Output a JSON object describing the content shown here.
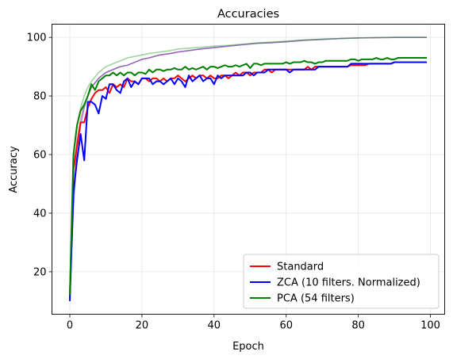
{
  "chart_data": {
    "type": "line",
    "title": "Accuracies",
    "xlabel": "Epoch",
    "ylabel": "Accuracy",
    "xlim": [
      -4.95,
      103.95
    ],
    "ylim": [
      5.5,
      104.5
    ],
    "xticks": [
      0,
      20,
      40,
      60,
      80,
      100
    ],
    "yticks": [
      20,
      40,
      60,
      80,
      100
    ],
    "grid": true,
    "legend_position": "bottom-right",
    "series": [
      {
        "name": "Standard",
        "color": "#ff0000",
        "in_legend": true,
        "x": [
          0,
          1,
          2,
          3,
          4,
          5,
          6,
          7,
          8,
          9,
          10,
          11,
          12,
          13,
          14,
          15,
          16,
          17,
          18,
          19,
          20,
          21,
          22,
          23,
          24,
          25,
          26,
          27,
          28,
          29,
          30,
          31,
          32,
          33,
          34,
          35,
          36,
          37,
          38,
          39,
          40,
          41,
          42,
          43,
          44,
          45,
          46,
          47,
          48,
          49,
          50,
          51,
          52,
          53,
          54,
          55,
          56,
          57,
          58,
          59,
          60,
          61,
          62,
          63,
          64,
          65,
          66,
          67,
          68,
          69,
          70,
          71,
          72,
          73,
          74,
          75,
          76,
          77,
          78,
          79,
          80,
          81,
          82,
          83,
          84,
          85,
          86,
          87,
          88,
          89,
          90,
          91,
          92,
          93,
          94,
          95,
          96,
          97,
          98,
          99
        ],
        "values": [
          11,
          55,
          63,
          71,
          71,
          76,
          79,
          81,
          82,
          82,
          83,
          81,
          84,
          83,
          84,
          83,
          86,
          85,
          85,
          84,
          86,
          86,
          85,
          86,
          86,
          85,
          86,
          85,
          86,
          86,
          87,
          86,
          85,
          86,
          87,
          86,
          87,
          87,
          86,
          87,
          86,
          86,
          87,
          87,
          86,
          87,
          88,
          87,
          88,
          88,
          87,
          88,
          88,
          88,
          89,
          89,
          88,
          89,
          89,
          89,
          89,
          89,
          89,
          89,
          89,
          89,
          90,
          89,
          90,
          90,
          90,
          90,
          90,
          90,
          90,
          90,
          90,
          90,
          90.5,
          90.5,
          90.5,
          90.5,
          90.5,
          91,
          91,
          91,
          91,
          91,
          91,
          91,
          91.5,
          91.5,
          91.5,
          91.5,
          91.5,
          91.5,
          91.5,
          91.5,
          91.5,
          91.5
        ]
      },
      {
        "name": "ZCA (10 filters. Normalized)",
        "color": "#0000ff",
        "in_legend": true,
        "x": [
          0,
          1,
          2,
          3,
          4,
          5,
          6,
          7,
          8,
          9,
          10,
          11,
          12,
          13,
          14,
          15,
          16,
          17,
          18,
          19,
          20,
          21,
          22,
          23,
          24,
          25,
          26,
          27,
          28,
          29,
          30,
          31,
          32,
          33,
          34,
          35,
          36,
          37,
          38,
          39,
          40,
          41,
          42,
          43,
          44,
          45,
          46,
          47,
          48,
          49,
          50,
          51,
          52,
          53,
          54,
          55,
          56,
          57,
          58,
          59,
          60,
          61,
          62,
          63,
          64,
          65,
          66,
          67,
          68,
          69,
          70,
          71,
          72,
          73,
          74,
          75,
          76,
          77,
          78,
          79,
          80,
          81,
          82,
          83,
          84,
          85,
          86,
          87,
          88,
          89,
          90,
          91,
          92,
          93,
          94,
          95,
          96,
          97,
          98,
          99
        ],
        "values": [
          10,
          47,
          58,
          67,
          58,
          78,
          78,
          77,
          74,
          80,
          79,
          84,
          84,
          82,
          81,
          85,
          86,
          83,
          85,
          84,
          86,
          86,
          86,
          84,
          85,
          85,
          84,
          85,
          86,
          84,
          86,
          85,
          83,
          87,
          85,
          86,
          87,
          85,
          86,
          86,
          84,
          87,
          86,
          87,
          87,
          87,
          87,
          87,
          87,
          88,
          88,
          87,
          88,
          88,
          88,
          89,
          89,
          89,
          89,
          89,
          89,
          88,
          89,
          89,
          89,
          89,
          89,
          89,
          89,
          90,
          90,
          90,
          90,
          90,
          90,
          90,
          90,
          90,
          91,
          91,
          91,
          91,
          91,
          91,
          91,
          91,
          91,
          91,
          91,
          91,
          91.5,
          91.5,
          91.5,
          91.5,
          91.5,
          91.5,
          91.5,
          91.5,
          91.5,
          91.5
        ]
      },
      {
        "name": "PCA (54 filters)",
        "color": "#008000",
        "in_legend": true,
        "x": [
          0,
          1,
          2,
          3,
          4,
          5,
          6,
          7,
          8,
          9,
          10,
          11,
          12,
          13,
          14,
          15,
          16,
          17,
          18,
          19,
          20,
          21,
          22,
          23,
          24,
          25,
          26,
          27,
          28,
          29,
          30,
          31,
          32,
          33,
          34,
          35,
          36,
          37,
          38,
          39,
          40,
          41,
          42,
          43,
          44,
          45,
          46,
          47,
          48,
          49,
          50,
          51,
          52,
          53,
          54,
          55,
          56,
          57,
          58,
          59,
          60,
          61,
          62,
          63,
          64,
          65,
          66,
          67,
          68,
          69,
          70,
          71,
          72,
          73,
          74,
          75,
          76,
          77,
          78,
          79,
          80,
          81,
          82,
          83,
          84,
          85,
          86,
          87,
          88,
          89,
          90,
          91,
          92,
          93,
          94,
          95,
          96,
          97,
          98,
          99
        ],
        "values": [
          12,
          60,
          70,
          75,
          77,
          80,
          84,
          82,
          85,
          86,
          87,
          87,
          88,
          87,
          88,
          87,
          88,
          88,
          87,
          88,
          88,
          87.5,
          89,
          88,
          89,
          89,
          88.5,
          89,
          89,
          89.5,
          89,
          89,
          90,
          89,
          89.5,
          89,
          89.5,
          90,
          89,
          90,
          90,
          89.5,
          90,
          90.5,
          90,
          90,
          90.5,
          90,
          90.5,
          91,
          89.5,
          91,
          91,
          90.5,
          91,
          91,
          91,
          91,
          91,
          91,
          91.5,
          91,
          91.5,
          91.5,
          91.5,
          92,
          91.5,
          91.5,
          91,
          91.5,
          91.5,
          92,
          92,
          92,
          92,
          92,
          92,
          92,
          92.5,
          92.5,
          92,
          92.5,
          92.5,
          92.5,
          92.5,
          93,
          92.5,
          92.5,
          93,
          92.5,
          92.5,
          93,
          93,
          93,
          93,
          93,
          93,
          93,
          93,
          93
        ]
      },
      {
        "name": "",
        "color": "#e03030",
        "opacity": 0.45,
        "in_legend": false,
        "x": [
          0,
          1,
          2,
          3,
          4,
          5,
          6,
          8,
          10,
          12,
          14,
          16,
          18,
          20,
          22,
          25,
          28,
          30,
          33,
          36,
          40,
          44,
          48,
          52,
          56,
          60,
          65,
          70,
          75,
          80,
          85,
          90,
          95,
          99
        ],
        "values": [
          12,
          45,
          65,
          72,
          77,
          80,
          83,
          86,
          88,
          89,
          90,
          90.5,
          91.5,
          92.5,
          93,
          94,
          94.5,
          95,
          95.5,
          96,
          96.5,
          97,
          97.5,
          98,
          98.2,
          98.5,
          99,
          99.3,
          99.6,
          99.8,
          99.9,
          100,
          100,
          100
        ]
      },
      {
        "name": "",
        "color": "#2020e0",
        "opacity": 0.45,
        "in_legend": false,
        "x": [
          0,
          1,
          2,
          3,
          4,
          5,
          6,
          8,
          10,
          12,
          14,
          16,
          18,
          20,
          22,
          25,
          28,
          30,
          33,
          36,
          40,
          44,
          48,
          52,
          56,
          60,
          65,
          70,
          75,
          80,
          85,
          90,
          95,
          99
        ],
        "values": [
          11,
          42,
          62,
          70,
          76,
          80,
          83,
          86,
          88,
          89,
          90,
          90.5,
          91.5,
          92.5,
          93,
          94,
          94.5,
          95,
          95.5,
          96,
          96.5,
          97,
          97.5,
          98,
          98.2,
          98.5,
          99,
          99.3,
          99.6,
          99.8,
          99.9,
          100,
          100,
          100
        ]
      },
      {
        "name": "",
        "color": "#30a030",
        "opacity": 0.45,
        "in_legend": false,
        "x": [
          0,
          1,
          2,
          3,
          4,
          5,
          6,
          8,
          10,
          12,
          14,
          16,
          18,
          20,
          22,
          25,
          28,
          30,
          33,
          36,
          40,
          44,
          48,
          52,
          56,
          60,
          65,
          70,
          75,
          80,
          85,
          90,
          95,
          99
        ],
        "values": [
          13,
          58,
          70,
          76,
          80,
          83,
          85,
          88,
          90,
          91,
          92,
          93,
          93.5,
          94,
          94.5,
          95,
          95.5,
          96,
          96.3,
          96.6,
          97,
          97.3,
          97.7,
          98.1,
          98.4,
          98.7,
          99.1,
          99.4,
          99.6,
          99.8,
          99.9,
          100,
          100,
          100
        ]
      }
    ]
  }
}
